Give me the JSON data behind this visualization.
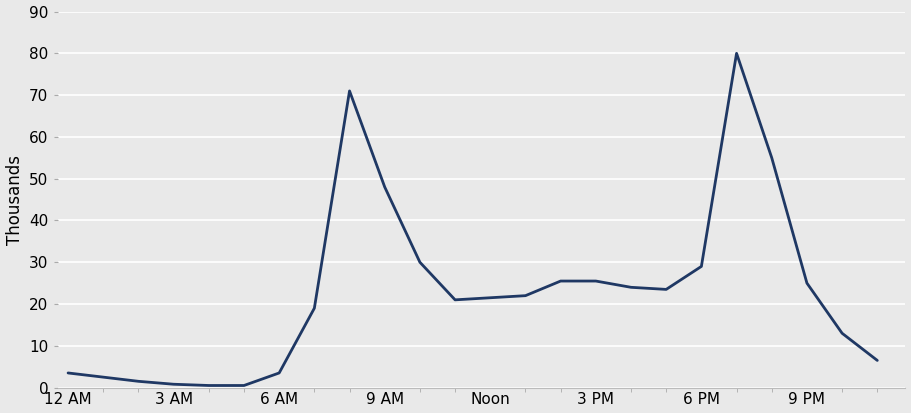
{
  "x": [
    0,
    1,
    2,
    3,
    4,
    5,
    6,
    7,
    8,
    9,
    10,
    11,
    12,
    13,
    14,
    15,
    16,
    17,
    18,
    19,
    20,
    21,
    22,
    23
  ],
  "y": [
    3.5,
    2.5,
    1.5,
    0.8,
    0.5,
    0.5,
    3.5,
    19,
    71,
    48,
    30,
    21,
    21.5,
    22,
    25.5,
    25.5,
    24,
    23.5,
    29,
    80,
    55,
    25,
    13,
    6.5
  ],
  "line_color": "#1F3864",
  "line_width": 2.0,
  "ylabel": "Thousands",
  "ylim": [
    0,
    90
  ],
  "yticks": [
    0,
    10,
    20,
    30,
    40,
    50,
    60,
    70,
    80,
    90
  ],
  "xtick_positions": [
    0,
    3,
    6,
    9,
    12,
    15,
    18,
    21
  ],
  "xtick_labels": [
    "12 AM",
    "3 AM",
    "6 AM",
    "9 AM",
    "Noon",
    "3 PM",
    "6 PM",
    "9 PM"
  ],
  "background_color": "#E9E9E9",
  "grid_color": "#FFFFFF",
  "tick_fontsize": 11,
  "ylabel_fontsize": 12
}
